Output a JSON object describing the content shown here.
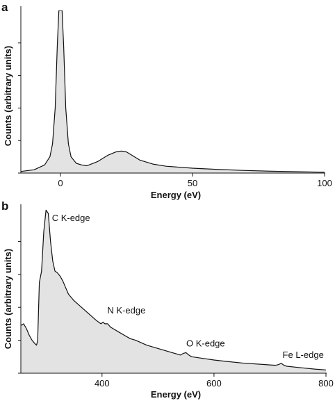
{
  "chart_data": [
    {
      "panel": "a",
      "type": "area",
      "xlabel": "Energy (eV)",
      "ylabel": "Counts (arbitrary units)",
      "xlim": [
        -15,
        100
      ],
      "ylim": [
        0,
        1
      ],
      "xticks": [
        0,
        50,
        100
      ],
      "yticks_labeled": false,
      "grid": false,
      "fill_color": "#e3e3e3",
      "line_color": "#111111",
      "series": [
        {
          "x": [
            -15,
            -10,
            -6,
            -4,
            -3,
            -2,
            -1.2,
            -0.6,
            0,
            0.6,
            1.2,
            2,
            3,
            4,
            6,
            8,
            10,
            14,
            18,
            21,
            23,
            25,
            27,
            30,
            35,
            40,
            50,
            60,
            70,
            80,
            90,
            100
          ],
          "y": [
            0.01,
            0.02,
            0.05,
            0.1,
            0.18,
            0.4,
            0.78,
            1.0,
            1.0,
            1.0,
            0.78,
            0.4,
            0.18,
            0.1,
            0.06,
            0.05,
            0.045,
            0.07,
            0.11,
            0.13,
            0.135,
            0.13,
            0.11,
            0.08,
            0.055,
            0.042,
            0.03,
            0.022,
            0.016,
            0.011,
            0.008,
            0.005
          ]
        }
      ]
    },
    {
      "panel": "b",
      "type": "area",
      "xlabel": "Energy (eV)",
      "ylabel": "Counts (arbitrary units)",
      "xlim": [
        255,
        800
      ],
      "ylim": [
        0,
        1
      ],
      "xticks": [
        400,
        600,
        800
      ],
      "yticks_labeled": false,
      "grid": false,
      "fill_color": "#e3e3e3",
      "line_color": "#111111",
      "series": [
        {
          "x": [
            255,
            260,
            265,
            270,
            275,
            280,
            283,
            285,
            288,
            292,
            296,
            300,
            304,
            308,
            312,
            316,
            320,
            325,
            330,
            335,
            340,
            350,
            360,
            370,
            380,
            390,
            398,
            402,
            405,
            410,
            415,
            420,
            430,
            440,
            450,
            460,
            480,
            500,
            520,
            535,
            540,
            545,
            550,
            555,
            560,
            580,
            600,
            620,
            650,
            680,
            700,
            710,
            715,
            720,
            725,
            730,
            750,
            780,
            800
          ],
          "y": [
            0.29,
            0.3,
            0.27,
            0.23,
            0.2,
            0.18,
            0.17,
            0.2,
            0.55,
            0.62,
            0.86,
            0.99,
            0.97,
            0.8,
            0.68,
            0.62,
            0.61,
            0.59,
            0.56,
            0.52,
            0.48,
            0.44,
            0.41,
            0.38,
            0.35,
            0.32,
            0.3,
            0.31,
            0.3,
            0.3,
            0.28,
            0.27,
            0.25,
            0.23,
            0.21,
            0.2,
            0.17,
            0.15,
            0.13,
            0.115,
            0.11,
            0.12,
            0.125,
            0.11,
            0.1,
            0.09,
            0.08,
            0.072,
            0.062,
            0.055,
            0.05,
            0.048,
            0.052,
            0.06,
            0.048,
            0.042,
            0.035,
            0.025,
            0.02
          ]
        }
      ],
      "annotations": [
        {
          "text": "C K-edge",
          "x": 308,
          "y": 0.94
        },
        {
          "text": "N K-edge",
          "x": 407,
          "y": 0.38
        },
        {
          "text": "O K-edge",
          "x": 548,
          "y": 0.18
        },
        {
          "text": "Fe L-edge",
          "x": 720,
          "y": 0.11
        }
      ]
    }
  ]
}
